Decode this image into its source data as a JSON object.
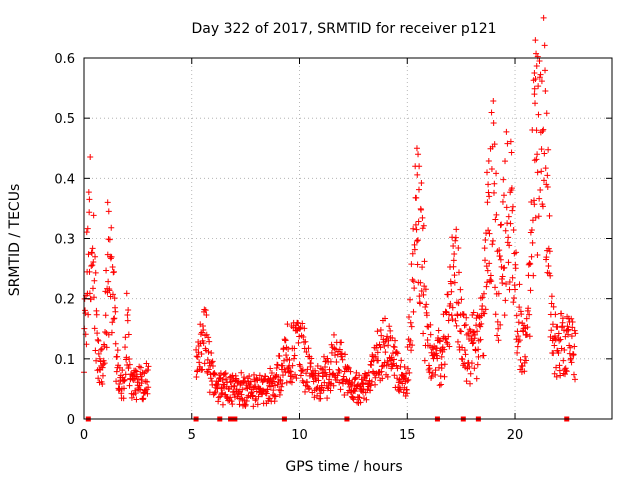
{
  "chart_data": {
    "type": "scatter",
    "title": "Day 322 of 2017, SRMTID for receiver p121",
    "xlabel": "GPS time / hours",
    "ylabel": "SRMTID / TECUs",
    "xlim": [
      0,
      24.5
    ],
    "ylim": [
      0,
      0.6
    ],
    "xticks": [
      0,
      5,
      10,
      15,
      20
    ],
    "xtick_labels": [
      "0",
      "5",
      "10",
      "15",
      "20"
    ],
    "yticks": [
      0,
      0.1,
      0.2,
      0.3,
      0.4,
      0.5,
      0.6
    ],
    "ytick_labels": [
      "0",
      "0.1",
      "0.2",
      "0.3",
      "0.4",
      "0.5",
      "0.6"
    ],
    "grid": true,
    "marker": "+",
    "color": "#ff0000",
    "zero_squares_x": [
      0.2,
      5.2,
      6.3,
      6.8,
      7.0,
      9.3,
      12.2,
      16.4,
      17.6,
      18.3,
      22.4
    ],
    "segments": [
      {
        "start": 0.0,
        "end": 3.0,
        "peaks": [
          [
            0.3,
            0.24,
            0.28
          ],
          [
            1.2,
            0.2,
            0.26
          ],
          [
            2.0,
            0.1,
            0.09
          ]
        ],
        "base": 0.06
      },
      {
        "start": 5.2,
        "end": 15.0,
        "peaks": [
          [
            5.5,
            0.08,
            0.4
          ],
          [
            9.8,
            0.07,
            0.7
          ],
          [
            11.7,
            0.05,
            0.5
          ],
          [
            14.0,
            0.07,
            0.6
          ]
        ],
        "base": 0.05
      },
      {
        "start": 15.0,
        "end": 16.6,
        "peaks": [
          [
            15.5,
            0.26,
            0.3
          ]
        ],
        "base": 0.1
      },
      {
        "start": 16.6,
        "end": 18.0,
        "peaks": [
          [
            17.2,
            0.12,
            0.4
          ]
        ],
        "base": 0.1
      },
      {
        "start": 18.0,
        "end": 22.8,
        "peaks": [
          [
            18.9,
            0.28,
            0.28
          ],
          [
            19.7,
            0.25,
            0.35
          ],
          [
            21.0,
            0.33,
            0.3
          ],
          [
            21.4,
            0.28,
            0.2
          ]
        ],
        "base": 0.12
      }
    ],
    "extreme_points": [
      {
        "x": 0.25,
        "y": 0.365
      },
      {
        "x": 1.1,
        "y": 0.36
      },
      {
        "x": 1.15,
        "y": 0.345
      },
      {
        "x": 15.45,
        "y": 0.45
      },
      {
        "x": 15.5,
        "y": 0.44
      },
      {
        "x": 15.55,
        "y": 0.42
      },
      {
        "x": 18.7,
        "y": 0.41
      },
      {
        "x": 18.75,
        "y": 0.39
      },
      {
        "x": 18.8,
        "y": 0.37
      },
      {
        "x": 20.9,
        "y": 0.575
      },
      {
        "x": 20.95,
        "y": 0.565
      },
      {
        "x": 20.9,
        "y": 0.54
      },
      {
        "x": 21.0,
        "y": 0.48
      },
      {
        "x": 20.92,
        "y": 0.43
      },
      {
        "x": 21.05,
        "y": 0.41
      },
      {
        "x": 21.5,
        "y": 0.405
      },
      {
        "x": 21.45,
        "y": 0.39
      }
    ]
  }
}
